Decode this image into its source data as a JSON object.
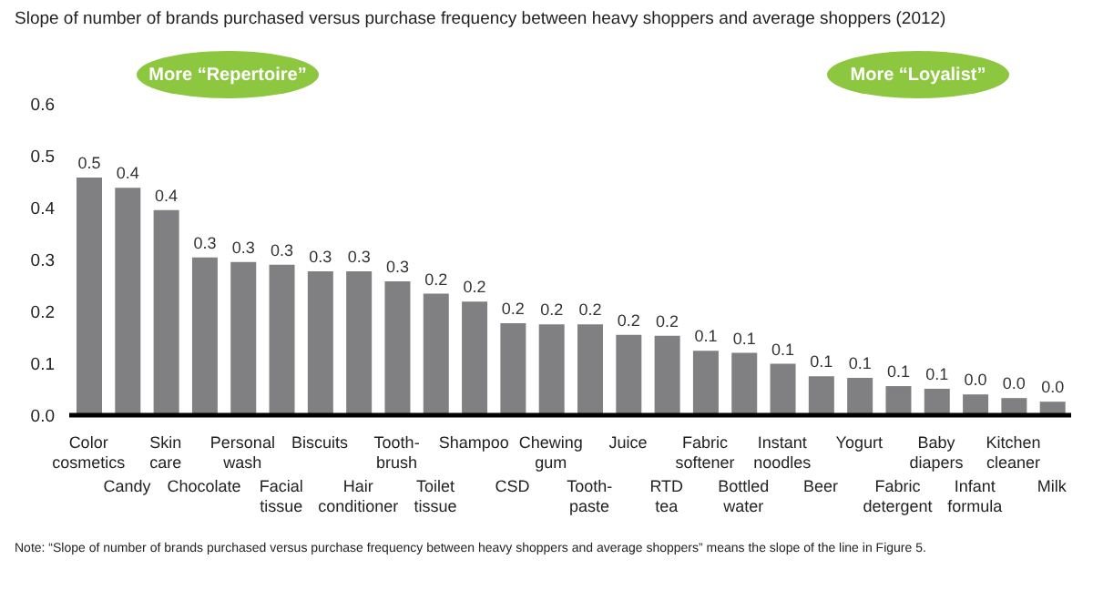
{
  "chart_data": {
    "type": "bar",
    "title": "Slope of number of brands purchased versus purchase frequency between heavy shoppers and average shoppers (2012)",
    "categories": [
      "Color\ncosmetics",
      "Candy",
      "Skin\ncare",
      "Chocolate",
      "Personal\nwash",
      "Facial\ntissue",
      "Biscuits",
      "Hair\nconditioner",
      "Tooth-\nbrush",
      "Toilet\ntissue",
      "Shampoo",
      "CSD",
      "Chewing\ngum",
      "Tooth-\npaste",
      "Juice",
      "RTD\ntea",
      "Fabric\nsoftener",
      "Bottled\nwater",
      "Instant\nnoodles",
      "Beer",
      "Yogurt",
      "Fabric\ndetergent",
      "Baby\ndiapers",
      "Infant\nformula",
      "Kitchen\ncleaner",
      "Milk"
    ],
    "values": [
      0.458,
      0.438,
      0.395,
      0.304,
      0.295,
      0.29,
      0.277,
      0.277,
      0.258,
      0.234,
      0.219,
      0.177,
      0.175,
      0.175,
      0.155,
      0.153,
      0.124,
      0.12,
      0.099,
      0.075,
      0.072,
      0.056,
      0.051,
      0.04,
      0.033,
      0.026
    ],
    "value_labels": [
      "0.5",
      "0.4",
      "0.4",
      "0.3",
      "0.3",
      "0.3",
      "0.3",
      "0.3",
      "0.3",
      "0.2",
      "0.2",
      "0.2",
      "0.2",
      "0.2",
      "0.2",
      "0.2",
      "0.1",
      "0.1",
      "0.1",
      "0.1",
      "0.1",
      "0.1",
      "0.1",
      "0.0",
      "0.0",
      "0.0"
    ],
    "color": "#808083",
    "ylim": [
      0,
      0.6
    ],
    "yticks": [
      {
        "value": 0,
        "label": "0.0"
      },
      {
        "value": 0.1,
        "label": "0.1"
      },
      {
        "value": 0.2,
        "label": "0.2"
      },
      {
        "value": 0.3,
        "label": "0.3"
      },
      {
        "value": 0.4,
        "label": "0.4"
      },
      {
        "value": 0.5,
        "label": "0.5"
      },
      {
        "value": 0.6,
        "label": "0.6"
      }
    ],
    "grid": false,
    "legend": false,
    "annotations": [
      "More “Repertoire”",
      "More “Loyalist”",
      "Note: “Slope of number of brands purchased versus purchase frequency between heavy shoppers and average shoppers” means the slope of the line in Figure 5."
    ]
  }
}
